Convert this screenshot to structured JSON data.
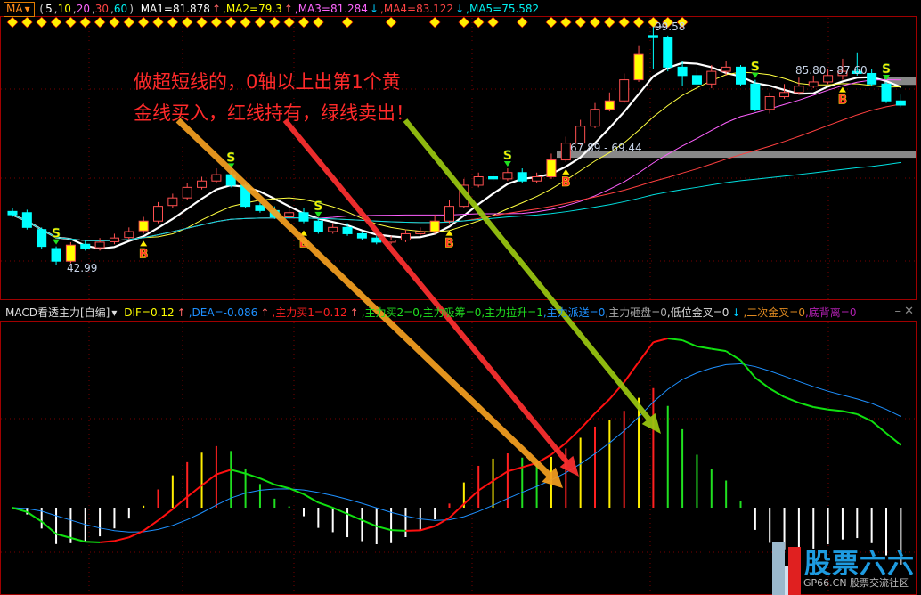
{
  "top_header": {
    "indicator_button": "MA",
    "params_open": "(",
    "params": [
      "5",
      "10",
      "20",
      "30",
      "60"
    ],
    "params_close": ")",
    "ma_values": [
      {
        "label": "MA1=81.878",
        "trend": "up"
      },
      {
        "label": ",MA2=79.3",
        "trend": "up"
      },
      {
        "label": ",MA3=81.284",
        "trend": "down"
      },
      {
        "label": ",MA4=83.122",
        "trend": "down"
      },
      {
        "label": ",MA5=75.582",
        "trend": ""
      }
    ]
  },
  "macd_header": {
    "indicator_name": "MACD看透主力[自编]",
    "items": [
      {
        "label": "DIF=0.12",
        "trend": "up",
        "color": "#ffff00"
      },
      {
        "label": ",DEA=-0.086",
        "trend": "up",
        "color": "#1e90ff"
      },
      {
        "label": ",主力买1=0.12",
        "trend": "up",
        "color": "#ff2020"
      },
      {
        "label": ",主力买2=0",
        "trend": "",
        "color": "#20e020"
      },
      {
        "label": ",主力吸筹=0",
        "trend": "",
        "color": "#20e020"
      },
      {
        "label": ",主力拉升=1",
        "trend": "",
        "color": "#20e020"
      },
      {
        "label": ",主力派送=0",
        "trend": "",
        "color": "#1e90ff"
      },
      {
        "label": ",主力砸盘=0",
        "trend": "",
        "color": "#aaaaaa"
      },
      {
        "label": ",低位金叉=0",
        "trend": "down",
        "color": "#dddddd"
      },
      {
        "label": ",二次金叉=0",
        "trend": "",
        "color": "#e08a20"
      },
      {
        "label": ",底背离=0",
        "trend": "",
        "color": "#b020b0"
      }
    ],
    "minimize": "–",
    "close": "✕"
  },
  "annotation": {
    "line1": "做超短线的，0轴以上出第1个黄",
    "line2": "金线买入，红线持有，绿线卖出！"
  },
  "price_labels": {
    "high": "99.58",
    "low": "42.99",
    "zone1": "67.89 - 69.44",
    "zone2": "85.80 - 87.60"
  },
  "watermark": {
    "logo": "股票六六",
    "site": "GP66.CN 股票交流社区"
  },
  "colors": {
    "up": "#ff5050",
    "down": "#00ffff",
    "signal_candle": "#ffff00",
    "ma1": "#ffffff",
    "ma2": "#ffff40",
    "ma3": "#ff60ff",
    "ma4": "#ff4040",
    "ma5": "#00e0e0",
    "dea": "#1e90ff",
    "dif_up": "#ff1010",
    "dif_down": "#10e010"
  },
  "chart_data": {
    "type": "candlestick",
    "price_range": [
      42.99,
      99.58
    ],
    "ma_periods": [
      5,
      10,
      20,
      30,
      60
    ],
    "open": [
      55.8,
      55.5,
      51.5,
      47.0,
      44.0,
      48.0,
      47.2,
      48.6,
      49.6,
      51.2,
      53.5,
      57.2,
      59.0,
      61.5,
      63.0,
      64.5,
      62.0,
      57.2,
      56.0,
      54.5,
      55.5,
      53.5,
      51.0,
      52.0,
      50.5,
      49.5,
      48.5,
      49.0,
      50.5,
      51.0,
      53.5,
      57.0,
      62.0,
      64.0,
      63.5,
      65.0,
      63.0,
      64.0,
      68.0,
      72.0,
      76.0,
      80.0,
      82.0,
      87.0,
      97.5,
      97.0,
      90.0,
      88.0,
      86.0,
      89.0,
      90.0,
      86.0,
      80.0,
      83.0,
      84.0,
      85.5,
      86.5,
      88.0,
      89.0,
      88.5,
      86.0,
      82.0
    ],
    "high": [
      56.5,
      56.2,
      52.0,
      47.5,
      48.5,
      49.0,
      49.5,
      50.5,
      52.0,
      54.5,
      58.0,
      60.0,
      62.5,
      64.0,
      66.0,
      65.5,
      62.5,
      58.0,
      57.0,
      56.5,
      56.5,
      54.0,
      53.0,
      53.0,
      51.0,
      50.0,
      50.0,
      51.5,
      52.0,
      55.0,
      58.5,
      63.5,
      65.0,
      65.0,
      66.0,
      66.0,
      65.0,
      69.5,
      73.5,
      77.5,
      81.5,
      84.0,
      88.5,
      95.0,
      99.58,
      97.5,
      91.5,
      90.0,
      90.5,
      91.5,
      90.5,
      87.0,
      84.0,
      86.0,
      87.5,
      88.0,
      89.5,
      92.0,
      93.5,
      89.5,
      86.5,
      83.5
    ],
    "low": [
      54.5,
      51.5,
      47.0,
      42.99,
      43.5,
      46.5,
      46.5,
      48.0,
      49.0,
      50.5,
      53.0,
      56.5,
      58.5,
      61.0,
      62.5,
      61.5,
      56.5,
      55.5,
      54.0,
      54.0,
      53.0,
      50.5,
      50.5,
      50.0,
      49.0,
      48.0,
      48.0,
      48.5,
      50.0,
      50.5,
      53.0,
      56.5,
      61.5,
      63.0,
      63.0,
      62.5,
      62.5,
      63.5,
      67.5,
      71.5,
      75.5,
      79.5,
      81.5,
      86.5,
      89.5,
      89.0,
      85.5,
      85.5,
      85.0,
      88.0,
      85.5,
      79.5,
      79.0,
      82.5,
      83.5,
      85.0,
      86.0,
      87.0,
      88.0,
      85.5,
      81.5,
      80.5
    ],
    "close": [
      55.0,
      52.0,
      47.5,
      44.0,
      47.8,
      47.0,
      48.5,
      49.5,
      51.0,
      53.5,
      57.0,
      59.0,
      61.5,
      63.0,
      64.5,
      62.0,
      57.0,
      56.0,
      54.5,
      55.5,
      53.5,
      51.0,
      52.0,
      50.5,
      49.5,
      48.5,
      49.0,
      50.5,
      51.0,
      53.5,
      57.0,
      62.0,
      64.0,
      63.5,
      65.0,
      63.0,
      64.0,
      68.0,
      72.0,
      76.0,
      80.0,
      82.0,
      87.0,
      93.0,
      97.0,
      90.0,
      88.0,
      86.0,
      89.0,
      90.0,
      86.0,
      80.0,
      83.0,
      84.0,
      85.5,
      86.5,
      88.0,
      89.0,
      88.5,
      86.0,
      82.0,
      81.0
    ],
    "yellow_signal_candles": [
      4,
      9,
      29,
      37,
      41,
      43
    ],
    "sell_signals": [
      3,
      15,
      21,
      34,
      51,
      60
    ],
    "buy_signals": [
      9,
      20,
      30,
      38,
      57
    ],
    "diamond_candles": [
      0,
      1,
      2,
      3,
      4,
      5,
      6,
      7,
      8,
      9,
      10,
      11,
      12,
      13,
      14,
      15,
      16,
      17,
      18,
      19,
      20,
      21,
      23,
      26,
      29,
      31,
      32,
      33,
      35,
      37,
      38,
      39,
      40,
      41,
      42,
      43,
      44,
      45,
      46
    ],
    "sell_label": "S",
    "buy_label": "B",
    "indicator": "MACD",
    "zones": [
      [
        67.89,
        69.44
      ],
      [
        85.8,
        87.6
      ]
    ]
  }
}
